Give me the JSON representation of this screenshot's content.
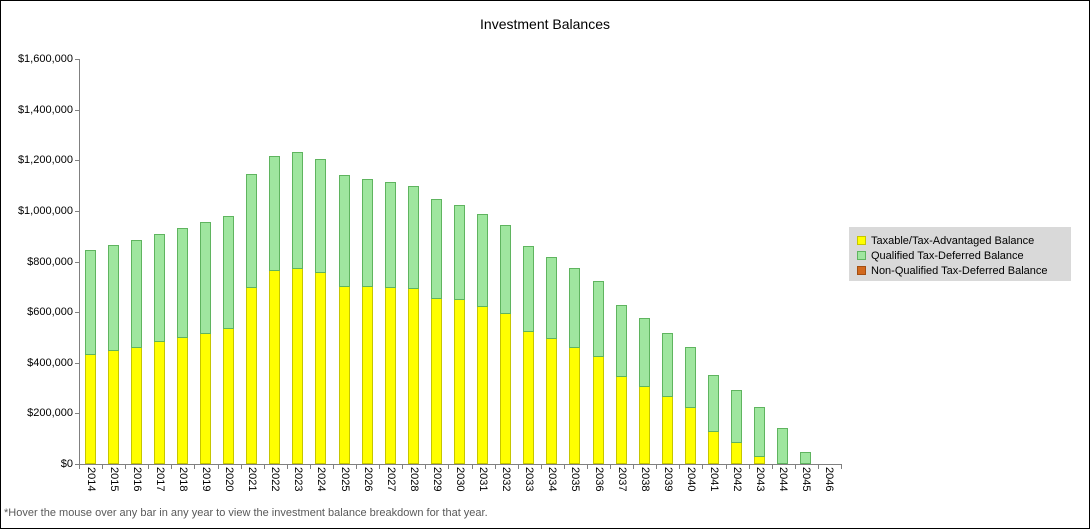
{
  "footnote": "*Hover the mouse over any bar in any year to view the investment balance breakdown for that year.",
  "legend": {
    "background": "#D9D9D9",
    "position": "right-middle"
  },
  "chart_data": {
    "type": "bar",
    "stacked": true,
    "title": "Investment Balances",
    "xlabel": "",
    "ylabel": "",
    "grid": false,
    "ylim": [
      0,
      1600000
    ],
    "ytick_step": 200000,
    "y_tick_labels": [
      "$0",
      "$200,000",
      "$400,000",
      "$600,000",
      "$800,000",
      "$1,000,000",
      "$1,200,000",
      "$1,400,000",
      "$1,600,000"
    ],
    "axis_color": "#808080",
    "categories": [
      "2014",
      "2015",
      "2016",
      "2017",
      "2018",
      "2019",
      "2020",
      "2021",
      "2022",
      "2023",
      "2024",
      "2025",
      "2026",
      "2027",
      "2028",
      "2029",
      "2030",
      "2031",
      "2032",
      "2033",
      "2034",
      "2035",
      "2036",
      "2037",
      "2038",
      "2039",
      "2040",
      "2041",
      "2042",
      "2043",
      "2044",
      "2045",
      "2046"
    ],
    "series": [
      {
        "name": "Taxable/Tax-Advantaged Balance",
        "color": "#FFFF00",
        "border_color": "#C6C600",
        "values": [
          430000,
          445000,
          460000,
          480000,
          497000,
          512000,
          532000,
          695000,
          762000,
          770000,
          753000,
          700000,
          700000,
          694000,
          691000,
          652000,
          649000,
          620000,
          594000,
          523000,
          493000,
          457000,
          423000,
          344000,
          304000,
          266000,
          222000,
          127000,
          82000,
          28000,
          0,
          0,
          0
        ]
      },
      {
        "name": "Qualified Tax-Deferred Balance",
        "color": "#9FE69F",
        "border_color": "#5FB45F",
        "values": [
          408000,
          412000,
          420000,
          417000,
          426000,
          435000,
          438000,
          443000,
          446000,
          453000,
          441000,
          434000,
          420000,
          411000,
          400000,
          387000,
          369000,
          360000,
          343000,
          332000,
          315000,
          309000,
          291000,
          276000,
          264000,
          246000,
          232000,
          219000,
          201000,
          189000,
          133000,
          38000,
          0
        ]
      },
      {
        "name": "Non-Qualified Tax-Deferred Balance",
        "color": "#D2691E",
        "border_color": "#A34F12",
        "values": [
          0,
          0,
          0,
          0,
          0,
          0,
          0,
          0,
          0,
          0,
          0,
          0,
          0,
          0,
          0,
          0,
          0,
          0,
          0,
          0,
          0,
          0,
          0,
          0,
          0,
          0,
          0,
          0,
          0,
          0,
          0,
          0,
          0
        ]
      }
    ]
  }
}
